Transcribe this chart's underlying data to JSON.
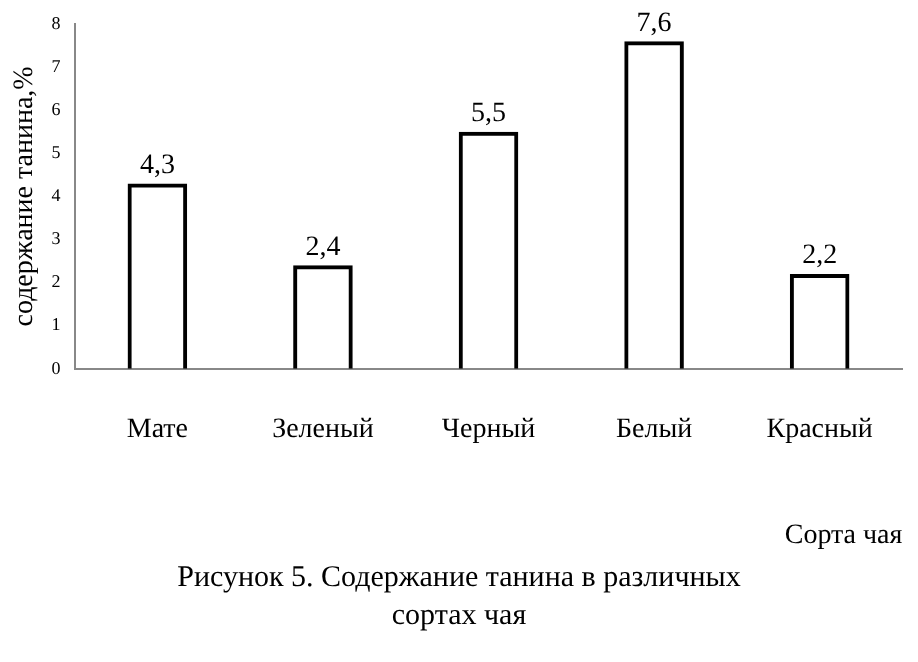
{
  "chart_data": {
    "type": "bar",
    "title": "Рисунок 5. Содержание танина в различных сортах чая",
    "xlabel": "Сорта чая",
    "ylabel": "содержание танина,%",
    "categories": [
      "Мате",
      "Зеленый",
      "Черный",
      "Белый",
      "Красный"
    ],
    "values": [
      4.3,
      2.4,
      5.5,
      7.6,
      2.2
    ],
    "value_labels": [
      "4,3",
      "2,4",
      "5,5",
      "7,6",
      "2,2"
    ],
    "color": "#000000",
    "ylim": [
      0,
      8
    ],
    "yticks": [
      0,
      1,
      2,
      3,
      4,
      5,
      6,
      7,
      8
    ],
    "grid": false,
    "legend": false
  }
}
